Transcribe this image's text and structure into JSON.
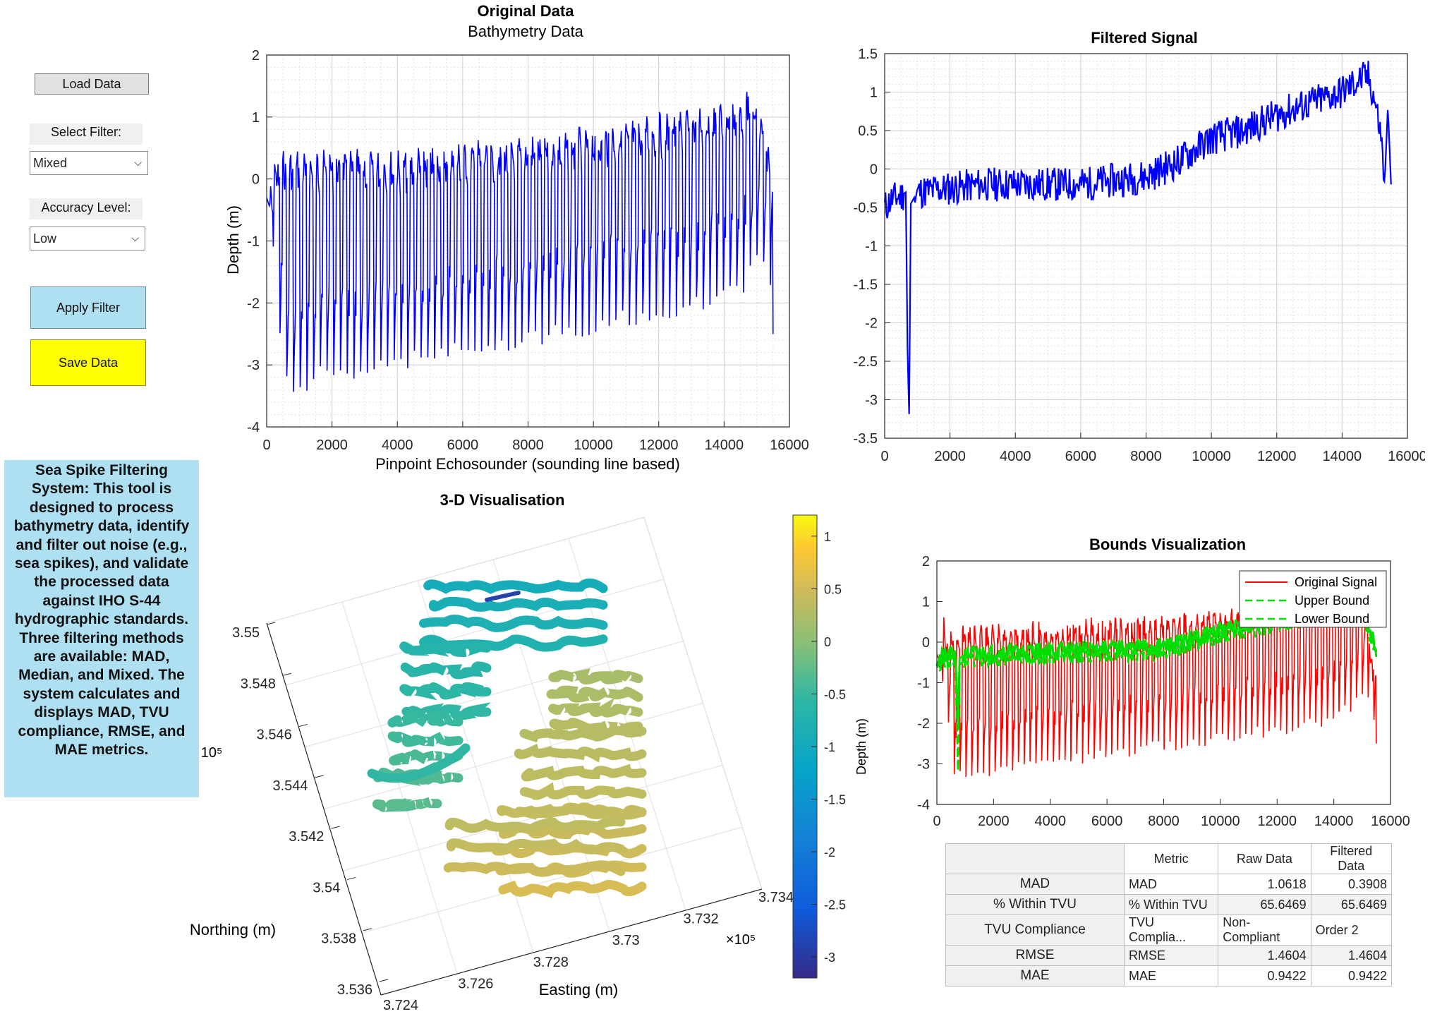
{
  "controls": {
    "load_label": "Load Data",
    "select_filter_label": "Select Filter:",
    "filter_value": "Mixed",
    "accuracy_label": "Accuracy Level:",
    "accuracy_value": "Low",
    "apply_label": "Apply Filter",
    "save_label": "Save Data"
  },
  "description": "Sea Spike Filtering System: This tool is designed to process bathymetry data, identify and filter out noise (e.g., sea spikes), and validate the processed data against IHO S-44 hydrographic standards. Three filtering methods are available: MAD, Median, and Mixed. The system calculates and displays MAD, TVU compliance, RMSE, and MAE metrics.",
  "colors": {
    "apply_button": "#aee0f2",
    "save_button": "#ffff00",
    "description_bg": "#aee0f2",
    "signal_blue": "#0000ff",
    "signal_red": "#ff0000",
    "bound_green": "#00dd00"
  },
  "metrics": {
    "row_headers": [
      "MAD",
      "% Within TVU",
      "TVU Compliance",
      "RMSE",
      "MAE"
    ],
    "columns": [
      "Metric",
      "Raw Data",
      "Filtered Data"
    ],
    "rows": [
      [
        "MAD",
        "1.0618",
        "0.3908"
      ],
      [
        "% Within TVU",
        "65.6469",
        "65.6469"
      ],
      [
        "TVU Complia...",
        "Non-Compliant",
        "Order 2"
      ],
      [
        "RMSE",
        "1.4604",
        "1.4604"
      ],
      [
        "MAE",
        "0.9422",
        "0.9422"
      ]
    ]
  },
  "chart_data": [
    {
      "id": "original",
      "type": "line",
      "title": "Original Data",
      "subtitle": "Bathymetry Data",
      "xlabel": "Pinpoint Echosounder (sounding line based)",
      "ylabel": "Depth (m)",
      "xlim": [
        0,
        16000
      ],
      "ylim": [
        -4,
        2
      ],
      "xticks": [
        0,
        2000,
        4000,
        6000,
        8000,
        10000,
        12000,
        14000,
        16000
      ],
      "yticks": [
        2,
        1,
        0,
        -1,
        -2,
        -3,
        -4
      ],
      "grid": true,
      "series": [
        {
          "color": "#0000ff",
          "x": [
            0,
            300,
            500,
            700,
            900,
            1200,
            1500,
            2000,
            2500,
            3000,
            3500,
            4000,
            4500,
            5000,
            6000,
            7000,
            8000,
            9000,
            10000,
            11000,
            12000,
            13000,
            14000,
            14600,
            14800,
            15000,
            15300,
            15500
          ],
          "top": [
            -0.3,
            0.3,
            0.4,
            0.4,
            0.4,
            0.4,
            0.4,
            0.4,
            0.4,
            0.4,
            0.4,
            0.4,
            0.45,
            0.5,
            0.55,
            0.6,
            0.65,
            0.7,
            0.8,
            0.9,
            1.0,
            1.1,
            1.2,
            1.35,
            1.3,
            1.2,
            0.6,
            -1.6
          ],
          "bottom": [
            -0.5,
            -2.8,
            -3.5,
            -3.6,
            -3.5,
            -3.4,
            -3.3,
            -3.3,
            -3.3,
            -3.2,
            -3.2,
            -3.1,
            -3.0,
            -3.0,
            -2.9,
            -2.8,
            -2.7,
            -2.6,
            -2.5,
            -2.4,
            -2.3,
            -2.2,
            -2.0,
            -1.8,
            -1.5,
            -1.4,
            -1.8,
            -2.5
          ],
          "oscillations": 75
        }
      ]
    },
    {
      "id": "filtered",
      "type": "line",
      "title": "Filtered Signal",
      "xlim": [
        0,
        16000
      ],
      "ylim": [
        -3.5,
        1.5
      ],
      "xticks": [
        0,
        2000,
        4000,
        6000,
        8000,
        10000,
        12000,
        14000,
        16000
      ],
      "yticks": [
        1.5,
        1,
        0.5,
        0,
        -0.5,
        -1,
        -1.5,
        -2,
        -2.5,
        -3,
        -3.5
      ],
      "grid": true,
      "series": [
        {
          "color": "#0000ff",
          "x": [
            0,
            200,
            500,
            650,
            700,
            750,
            800,
            1000,
            2000,
            3000,
            4000,
            5000,
            6000,
            7000,
            8000,
            9000,
            10000,
            11000,
            12000,
            13000,
            14000,
            14500,
            14800,
            15000,
            15200,
            15300,
            15400,
            15500
          ],
          "y": [
            -0.5,
            -0.4,
            -0.35,
            -0.3,
            -2.4,
            -3.2,
            -0.45,
            -0.3,
            -0.25,
            -0.2,
            -0.2,
            -0.2,
            -0.2,
            -0.15,
            -0.1,
            0.1,
            0.4,
            0.5,
            0.7,
            0.85,
            1.0,
            1.15,
            1.2,
            0.9,
            0.4,
            -0.2,
            0.8,
            -0.2
          ]
        }
      ]
    },
    {
      "id": "bounds",
      "type": "line",
      "title": "Bounds Visualization",
      "xlim": [
        0,
        16000
      ],
      "ylim": [
        -4,
        2
      ],
      "xticks": [
        0,
        2000,
        4000,
        6000,
        8000,
        10000,
        12000,
        14000,
        16000
      ],
      "yticks": [
        2,
        1,
        0,
        -1,
        -2,
        -3,
        -4
      ],
      "legend": {
        "position": "top-right",
        "entries": [
          "Original Signal",
          "Upper Bound",
          "Lower Bound"
        ]
      },
      "series": [
        {
          "name": "Original Signal",
          "color": "#ff0000",
          "x": [
            0,
            500,
            1000,
            2000,
            4000,
            6000,
            8000,
            10000,
            12000,
            14000,
            15000,
            15500
          ],
          "top": [
            -0.3,
            0.4,
            0.4,
            0.4,
            0.45,
            0.55,
            0.65,
            0.8,
            1.0,
            1.2,
            1.2,
            -1.6
          ],
          "bottom": [
            -0.5,
            -3.5,
            -3.4,
            -3.3,
            -3.1,
            -2.9,
            -2.7,
            -2.5,
            -2.3,
            -2.0,
            -1.4,
            -2.5
          ]
        },
        {
          "name": "Upper Bound",
          "color": "#00dd00",
          "x": [
            0,
            500,
            650,
            750,
            800,
            1000,
            2000,
            4000,
            6000,
            8000,
            10000,
            12000,
            14000,
            15000,
            15500
          ],
          "y": [
            -0.4,
            -0.3,
            -0.3,
            -2.0,
            -0.4,
            -0.3,
            -0.25,
            -0.2,
            -0.15,
            -0.1,
            0.3,
            0.55,
            0.85,
            0.9,
            -0.2
          ]
        },
        {
          "name": "Lower Bound",
          "color": "#00dd00",
          "x": [
            0,
            500,
            650,
            750,
            800,
            1000,
            2000,
            4000,
            6000,
            8000,
            10000,
            12000,
            14000,
            15000,
            15500
          ],
          "y": [
            -0.55,
            -0.45,
            -0.45,
            -3.2,
            -0.55,
            -0.45,
            -0.4,
            -0.35,
            -0.3,
            -0.25,
            0.15,
            0.4,
            0.7,
            0.75,
            -0.3
          ]
        }
      ]
    },
    {
      "id": "3d",
      "type": "scatter",
      "title": "3-D Visualisation",
      "xlabel": "Easting (m)",
      "ylabel": "Northing (m)",
      "x_ticklabels": [
        "3.724",
        "3.726",
        "3.728",
        "3.73",
        "3.732",
        "3.734"
      ],
      "y_ticklabels": [
        "3.536",
        "3.538",
        "3.54",
        "3.542",
        "3.544",
        "3.546",
        "3.548",
        "3.55"
      ],
      "x_exponent": "×10⁵",
      "y_exponent": "10⁵",
      "colorbar": {
        "label": "Depth (m)",
        "ticks": [
          "1",
          "0.5",
          "0",
          "-0.5",
          "-1",
          "-1.5",
          "-2",
          "-2.5",
          "-3"
        ],
        "range": [
          -3.2,
          1.2
        ]
      }
    }
  ]
}
